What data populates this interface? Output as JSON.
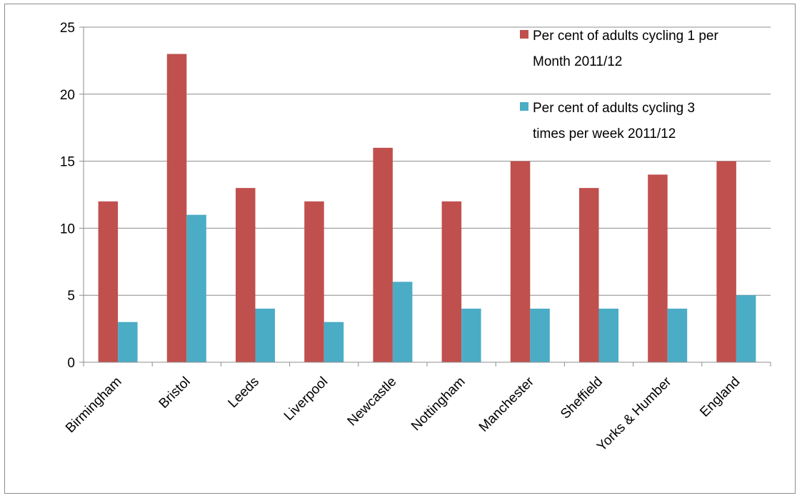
{
  "chart_data": {
    "type": "bar",
    "categories": [
      "Birmingham",
      "Bristol",
      "Leeds",
      "Liverpool",
      "Newcastle",
      "Nottingham",
      "Manchester",
      "Sheffield",
      "Yorks & Humber",
      "England"
    ],
    "series": [
      {
        "name": "Per cent of adults cycling 1 per Month 2011/12",
        "legend_lines": [
          "Per cent of adults cycling 1 per",
          "Month 2011/12"
        ],
        "color": "#c0504d",
        "values": [
          12,
          23,
          13,
          12,
          16,
          12,
          15,
          13,
          14,
          15
        ]
      },
      {
        "name": "Per cent of adults cycling 3 times per week 2011/12",
        "legend_lines": [
          "Per cent of adults cycling 3",
          "times per week 2011/12"
        ],
        "color": "#4bacc6",
        "values": [
          3,
          11,
          4,
          3,
          6,
          4,
          4,
          4,
          4,
          5
        ]
      }
    ],
    "ylim": [
      0,
      25
    ],
    "yticks": [
      "0",
      "5",
      "10",
      "15",
      "20",
      "25"
    ],
    "grid": true,
    "legend_position": "top-right",
    "title": "",
    "xlabel": "",
    "ylabel": ""
  }
}
